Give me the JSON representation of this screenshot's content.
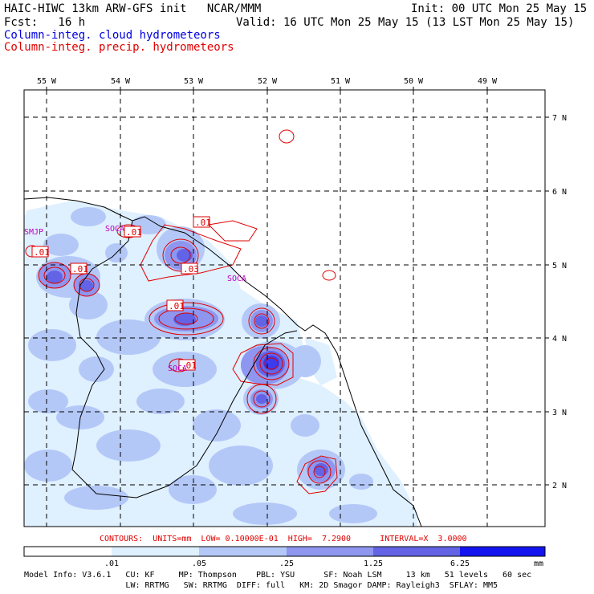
{
  "header": {
    "line1_left": "HAIC-HIWC 13km ARW-GFS init   NCAR/MMM",
    "line1_right": "Init: 00 UTC Mon 25 May 15",
    "line2_left": "Fcst:   16 h",
    "line2_right": "Valid: 16 UTC Mon 25 May 15 (13 LST Mon 25 May 15)",
    "field1": "Column-integ. cloud hydrometeors",
    "field2": "Column-integ. precip. hydrometeors"
  },
  "colors": {
    "cloud_text": "#0000e0",
    "precip_text": "#e00000",
    "fill_levels": [
      "#ffffff",
      "#dff0ff",
      "#b4c8f8",
      "#8e96ef",
      "#6363e6",
      "#3c3cee",
      "#1414f0"
    ]
  },
  "map": {
    "lon_labels": [
      "55 W",
      "54 W",
      "53 W",
      "52 W",
      "51 W",
      "50 W",
      "49 W"
    ],
    "lat_labels": [
      "7 N",
      "6 N",
      "5 N",
      "4 N",
      "3 N",
      "2 N"
    ],
    "station_labels": [
      "SMJP",
      "SOCA",
      "SOCA",
      "SOCA"
    ],
    "contour_labels": [
      ".01",
      ".01",
      ".01",
      ".01",
      ".03",
      ".01",
      ".01"
    ]
  },
  "contours_line": "CONTOURS:  UNITS=mm  LOW= 0.10000E-01  HIGH=  7.2900      INTERVAL=X  3.0000",
  "colorbar": {
    "ticks": [
      ".01",
      ".05",
      ".25",
      "1.25",
      "6.25"
    ],
    "unit": "mm"
  },
  "model_info": {
    "line1": "Model Info: V3.6.1   CU: KF     MP: Thompson    PBL: YSU      SF: Noah LSM     13 km   51 levels   60 sec",
    "line2": "                     LW: RRTMG   SW: RRTMG  DIFF: full   KM: 2D Smagor DAMP: Rayleigh3  SFLAY: MM5"
  }
}
